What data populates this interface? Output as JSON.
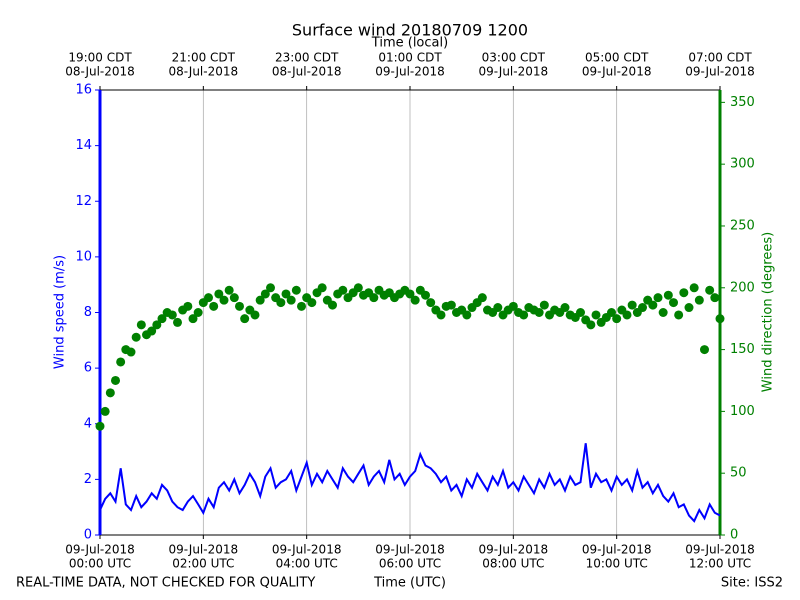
{
  "chart_data": {
    "type": "line-scatter",
    "title": "Surface wind 20180709 1200",
    "x_top_label": "Time (local)",
    "xlabel": "Time (UTC)",
    "ylabel": "Wind speed (m/s)",
    "y2label": "Wind direction (degrees)",
    "footer_left": "REAL-TIME DATA, NOT CHECKED FOR QUALITY",
    "footer_right": "Site: ISS2",
    "grid": true,
    "xlim": [
      "2018-07-09 00:00",
      "2018-07-09 12:00"
    ],
    "xticks": [
      {
        "value": "2018-07-09 00:00",
        "label": [
          "09-Jul-2018",
          "00:00 UTC"
        ]
      },
      {
        "value": "2018-07-09 02:00",
        "label": [
          "09-Jul-2018",
          "02:00 UTC"
        ]
      },
      {
        "value": "2018-07-09 04:00",
        "label": [
          "09-Jul-2018",
          "04:00 UTC"
        ]
      },
      {
        "value": "2018-07-09 06:00",
        "label": [
          "09-Jul-2018",
          "06:00 UTC"
        ]
      },
      {
        "value": "2018-07-09 08:00",
        "label": [
          "09-Jul-2018",
          "08:00 UTC"
        ]
      },
      {
        "value": "2018-07-09 10:00",
        "label": [
          "09-Jul-2018",
          "10:00 UTC"
        ]
      },
      {
        "value": "2018-07-09 12:00",
        "label": [
          "09-Jul-2018",
          "12:00 UTC"
        ]
      }
    ],
    "xticks_top": [
      {
        "value": "2018-07-09 00:00",
        "label": [
          "19:00 CDT",
          "08-Jul-2018"
        ]
      },
      {
        "value": "2018-07-09 02:00",
        "label": [
          "21:00 CDT",
          "08-Jul-2018"
        ]
      },
      {
        "value": "2018-07-09 04:00",
        "label": [
          "23:00 CDT",
          "08-Jul-2018"
        ]
      },
      {
        "value": "2018-07-09 06:00",
        "label": [
          "01:00 CDT",
          "09-Jul-2018"
        ]
      },
      {
        "value": "2018-07-09 08:00",
        "label": [
          "03:00 CDT",
          "09-Jul-2018"
        ]
      },
      {
        "value": "2018-07-09 10:00",
        "label": [
          "05:00 CDT",
          "09-Jul-2018"
        ]
      },
      {
        "value": "2018-07-09 12:00",
        "label": [
          "07:00 CDT",
          "09-Jul-2018"
        ]
      }
    ],
    "ylim": [
      0,
      16
    ],
    "yticks": [
      0,
      2,
      4,
      6,
      8,
      10,
      12,
      14,
      16
    ],
    "y2lim": [
      0,
      360
    ],
    "y2ticks": [
      0,
      50,
      100,
      150,
      200,
      250,
      300,
      350
    ],
    "x": [
      "2018-07-09 00:00",
      "2018-07-09 00:06",
      "2018-07-09 00:12",
      "2018-07-09 00:18",
      "2018-07-09 00:24",
      "2018-07-09 00:30",
      "2018-07-09 00:36",
      "2018-07-09 00:42",
      "2018-07-09 00:48",
      "2018-07-09 00:54",
      "2018-07-09 01:00",
      "2018-07-09 01:06",
      "2018-07-09 01:12",
      "2018-07-09 01:18",
      "2018-07-09 01:24",
      "2018-07-09 01:30",
      "2018-07-09 01:36",
      "2018-07-09 01:42",
      "2018-07-09 01:48",
      "2018-07-09 01:54",
      "2018-07-09 02:00",
      "2018-07-09 02:06",
      "2018-07-09 02:12",
      "2018-07-09 02:18",
      "2018-07-09 02:24",
      "2018-07-09 02:30",
      "2018-07-09 02:36",
      "2018-07-09 02:42",
      "2018-07-09 02:48",
      "2018-07-09 02:54",
      "2018-07-09 03:00",
      "2018-07-09 03:06",
      "2018-07-09 03:12",
      "2018-07-09 03:18",
      "2018-07-09 03:24",
      "2018-07-09 03:30",
      "2018-07-09 03:36",
      "2018-07-09 03:42",
      "2018-07-09 03:48",
      "2018-07-09 03:54",
      "2018-07-09 04:00",
      "2018-07-09 04:06",
      "2018-07-09 04:12",
      "2018-07-09 04:18",
      "2018-07-09 04:24",
      "2018-07-09 04:30",
      "2018-07-09 04:36",
      "2018-07-09 04:42",
      "2018-07-09 04:48",
      "2018-07-09 04:54",
      "2018-07-09 05:00",
      "2018-07-09 05:06",
      "2018-07-09 05:12",
      "2018-07-09 05:18",
      "2018-07-09 05:24",
      "2018-07-09 05:30",
      "2018-07-09 05:36",
      "2018-07-09 05:42",
      "2018-07-09 05:48",
      "2018-07-09 05:54",
      "2018-07-09 06:00",
      "2018-07-09 06:06",
      "2018-07-09 06:12",
      "2018-07-09 06:18",
      "2018-07-09 06:24",
      "2018-07-09 06:30",
      "2018-07-09 06:36",
      "2018-07-09 06:42",
      "2018-07-09 06:48",
      "2018-07-09 06:54",
      "2018-07-09 07:00",
      "2018-07-09 07:06",
      "2018-07-09 07:12",
      "2018-07-09 07:18",
      "2018-07-09 07:24",
      "2018-07-09 07:30",
      "2018-07-09 07:36",
      "2018-07-09 07:42",
      "2018-07-09 07:48",
      "2018-07-09 07:54",
      "2018-07-09 08:00",
      "2018-07-09 08:06",
      "2018-07-09 08:12",
      "2018-07-09 08:18",
      "2018-07-09 08:24",
      "2018-07-09 08:30",
      "2018-07-09 08:36",
      "2018-07-09 08:42",
      "2018-07-09 08:48",
      "2018-07-09 08:54",
      "2018-07-09 09:00",
      "2018-07-09 09:06",
      "2018-07-09 09:12",
      "2018-07-09 09:18",
      "2018-07-09 09:24",
      "2018-07-09 09:30",
      "2018-07-09 09:36",
      "2018-07-09 09:42",
      "2018-07-09 09:48",
      "2018-07-09 09:54",
      "2018-07-09 10:00",
      "2018-07-09 10:06",
      "2018-07-09 10:12",
      "2018-07-09 10:18",
      "2018-07-09 10:24",
      "2018-07-09 10:30",
      "2018-07-09 10:36",
      "2018-07-09 10:42",
      "2018-07-09 10:48",
      "2018-07-09 10:54",
      "2018-07-09 11:00",
      "2018-07-09 11:06",
      "2018-07-09 11:12",
      "2018-07-09 11:18",
      "2018-07-09 11:24",
      "2018-07-09 11:30",
      "2018-07-09 11:36",
      "2018-07-09 11:42",
      "2018-07-09 11:48",
      "2018-07-09 11:54",
      "2018-07-09 12:00"
    ],
    "series": [
      {
        "color": "#0000ff",
        "type": "line",
        "values": [
          0.9,
          1.3,
          1.5,
          1.2,
          2.4,
          1.1,
          0.9,
          1.4,
          1.0,
          1.2,
          1.5,
          1.3,
          1.8,
          1.6,
          1.2,
          1.0,
          0.9,
          1.2,
          1.4,
          1.1,
          0.8,
          1.3,
          1.0,
          1.7,
          1.9,
          1.6,
          2.0,
          1.5,
          1.8,
          2.2,
          1.9,
          1.4,
          2.1,
          2.4,
          1.7,
          1.9,
          2.0,
          2.3,
          1.6,
          2.1,
          2.6,
          1.8,
          2.2,
          1.9,
          2.3,
          2.0,
          1.7,
          2.4,
          2.1,
          1.9,
          2.2,
          2.5,
          1.8,
          2.1,
          2.3,
          1.9,
          2.7,
          2.0,
          2.2,
          1.8,
          2.1,
          2.3,
          2.9,
          2.5,
          2.4,
          2.2,
          1.9,
          2.1,
          1.6,
          1.8,
          1.4,
          2.0,
          1.7,
          2.2,
          1.9,
          1.6,
          2.1,
          1.8,
          2.3,
          1.7,
          1.9,
          1.6,
          2.1,
          1.8,
          1.5,
          2.0,
          1.7,
          2.2,
          1.8,
          2.0,
          1.6,
          2.1,
          1.8,
          1.9,
          3.3,
          1.7,
          2.2,
          1.9,
          2.0,
          1.6,
          2.1,
          1.8,
          2.0,
          1.6,
          2.3,
          1.7,
          1.9,
          1.5,
          1.8,
          1.4,
          1.2,
          1.5,
          1.0,
          1.1,
          0.7,
          0.5,
          0.9,
          0.6,
          1.1,
          0.8,
          0.7
        ]
      },
      {
        "color": "#008000",
        "type": "scatter",
        "axis": "y2",
        "values": [
          88,
          100,
          115,
          125,
          140,
          150,
          148,
          160,
          170,
          162,
          165,
          170,
          175,
          180,
          178,
          172,
          182,
          185,
          175,
          180,
          188,
          192,
          185,
          195,
          190,
          198,
          192,
          185,
          175,
          182,
          178,
          190,
          195,
          200,
          192,
          188,
          195,
          190,
          198,
          185,
          192,
          188,
          196,
          200,
          190,
          186,
          195,
          198,
          192,
          196,
          200,
          194,
          196,
          192,
          198,
          194,
          196,
          192,
          195,
          198,
          195,
          190,
          198,
          194,
          188,
          182,
          178,
          185,
          186,
          180,
          182,
          178,
          184,
          188,
          192,
          182,
          180,
          184,
          178,
          182,
          185,
          180,
          178,
          184,
          182,
          180,
          186,
          178,
          182,
          180,
          184,
          178,
          176,
          180,
          174,
          170,
          178,
          172,
          176,
          180,
          175,
          182,
          178,
          186,
          180,
          184,
          190,
          186,
          192,
          180,
          194,
          188,
          178,
          196,
          184,
          200,
          190,
          150,
          198,
          192,
          175
        ]
      }
    ]
  }
}
